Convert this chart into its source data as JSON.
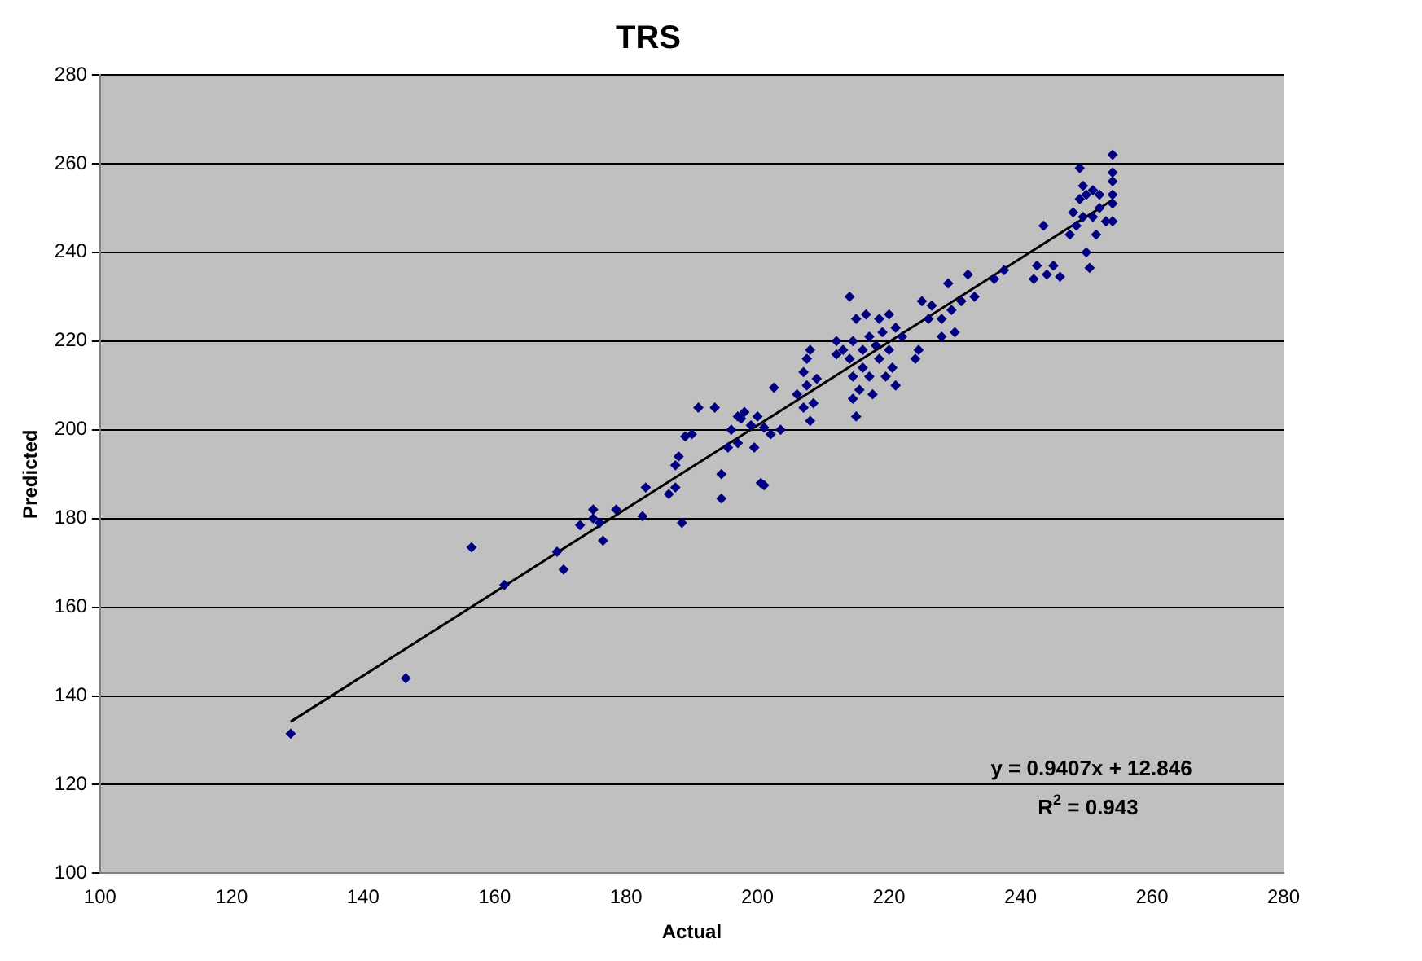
{
  "chart_data": {
    "type": "scatter",
    "title": "TRS",
    "xlabel": "Actual",
    "ylabel": "Predicted",
    "xlim": [
      100,
      280
    ],
    "ylim": [
      100,
      280
    ],
    "xticks": [
      100,
      120,
      140,
      160,
      180,
      200,
      220,
      240,
      260,
      280
    ],
    "yticks": [
      100,
      120,
      140,
      160,
      180,
      200,
      220,
      240,
      260,
      280
    ],
    "grid": "y",
    "marker": "diamond",
    "series": [
      {
        "color": "#000080",
        "x": [
          129,
          146.5,
          156.5,
          161.5,
          169.5,
          170.5,
          173,
          175,
          175,
          176,
          176.5,
          178.5,
          182.5,
          183,
          186.5,
          187.5,
          187.5,
          188,
          188.5,
          189,
          190,
          191,
          193.5,
          194.5,
          194.5,
          195.5,
          196,
          197,
          197,
          197.5,
          198,
          199,
          199.5,
          200,
          200.5,
          201,
          201,
          202,
          202.5,
          203.5,
          206,
          207,
          207,
          207.5,
          207.5,
          208,
          208,
          208.5,
          209,
          212,
          212,
          213,
          214,
          214,
          214.5,
          214.5,
          214.5,
          215,
          215,
          215.5,
          216,
          216,
          216.5,
          217,
          217,
          217.5,
          218,
          218.5,
          218.5,
          219,
          219.5,
          220,
          220,
          220.5,
          221,
          221,
          222,
          224,
          224.5,
          225,
          226,
          226.5,
          228,
          228,
          229,
          229.5,
          230,
          231,
          232,
          233,
          236,
          237.5,
          242,
          242.5,
          243.5,
          244,
          245,
          246,
          247.5,
          248,
          248.5,
          249,
          249,
          249.5,
          249.5,
          250,
          250,
          250.5,
          251,
          251,
          251.5,
          252,
          252,
          253,
          254,
          254,
          254,
          254,
          254,
          254
        ],
        "values": [
          131.5,
          144,
          173.5,
          165,
          172.5,
          168.5,
          178.5,
          182,
          180,
          179,
          175,
          182,
          180.5,
          187,
          185.5,
          192,
          187,
          194,
          179,
          198.5,
          199,
          205,
          205,
          184.5,
          190,
          196,
          200,
          197,
          203,
          202.5,
          204,
          201,
          196,
          203,
          188,
          187.5,
          200.5,
          199,
          209.5,
          200,
          208,
          213,
          205,
          210,
          216,
          202,
          218,
          206,
          211.5,
          220,
          217,
          218,
          230,
          216,
          212,
          207,
          220,
          203,
          225,
          209,
          214,
          218,
          226,
          221,
          212,
          208,
          219,
          216,
          225,
          222,
          212,
          226,
          218,
          214,
          210,
          223,
          221,
          216,
          218,
          229,
          225,
          228,
          221,
          225,
          233,
          227,
          222,
          229,
          235,
          230,
          234,
          236,
          234,
          237,
          246,
          235,
          237,
          234.5,
          244,
          249,
          246,
          252,
          259,
          255,
          248,
          240,
          253,
          236.5,
          248,
          254,
          244,
          253,
          250,
          247,
          262,
          258,
          256,
          253,
          251,
          247
        ]
      },
      {
        "type": "line",
        "color": "#000000",
        "marker": "none",
        "x": [
          129,
          254
        ],
        "values": [
          134.2,
          251.8
        ]
      }
    ],
    "annotations": [
      "y = 0.9407x + 12.846",
      "R$^{2}$ = 0.943"
    ]
  }
}
